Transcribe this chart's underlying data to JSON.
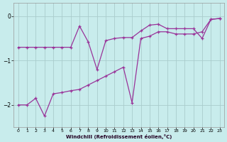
{
  "xlabel": "Windchill (Refroidissement éolien,°C)",
  "bg_color": "#c8ecec",
  "line_color": "#993399",
  "grid_color": "#aacccc",
  "xlim": [
    -0.5,
    23.5
  ],
  "ylim": [
    -2.5,
    0.3
  ],
  "yticks": [
    0,
    -1,
    -2
  ],
  "xticks": [
    0,
    1,
    2,
    3,
    4,
    5,
    6,
    7,
    8,
    9,
    10,
    11,
    12,
    13,
    14,
    15,
    16,
    17,
    18,
    19,
    20,
    21,
    22,
    23
  ],
  "line1_x": [
    0,
    1,
    2,
    3,
    4,
    5,
    6,
    7,
    8,
    9,
    10,
    11,
    12,
    13,
    14,
    15,
    16,
    17,
    18,
    19,
    20,
    21,
    22,
    23
  ],
  "line1_y": [
    -2.0,
    -2.0,
    -1.85,
    -2.25,
    -1.75,
    -1.72,
    -1.68,
    -1.65,
    -1.55,
    -1.45,
    -1.35,
    -1.25,
    -1.15,
    -1.95,
    -0.5,
    -0.45,
    -0.35,
    -0.35,
    -0.4,
    -0.4,
    -0.4,
    -0.35,
    -0.07,
    -0.05
  ],
  "line2_x": [
    0,
    1,
    2,
    3,
    4,
    5,
    6,
    7,
    8,
    9,
    10,
    11,
    12,
    13,
    14,
    15,
    16,
    17,
    18,
    19,
    20,
    21,
    22,
    23
  ],
  "line2_y": [
    -0.7,
    -0.7,
    -0.7,
    -0.7,
    -0.7,
    -0.7,
    -0.7,
    -0.22,
    -0.58,
    -1.2,
    -0.55,
    -0.5,
    -0.48,
    -0.48,
    -0.33,
    -0.2,
    -0.18,
    -0.28,
    -0.28,
    -0.28,
    -0.28,
    -0.5,
    -0.07,
    -0.05
  ]
}
